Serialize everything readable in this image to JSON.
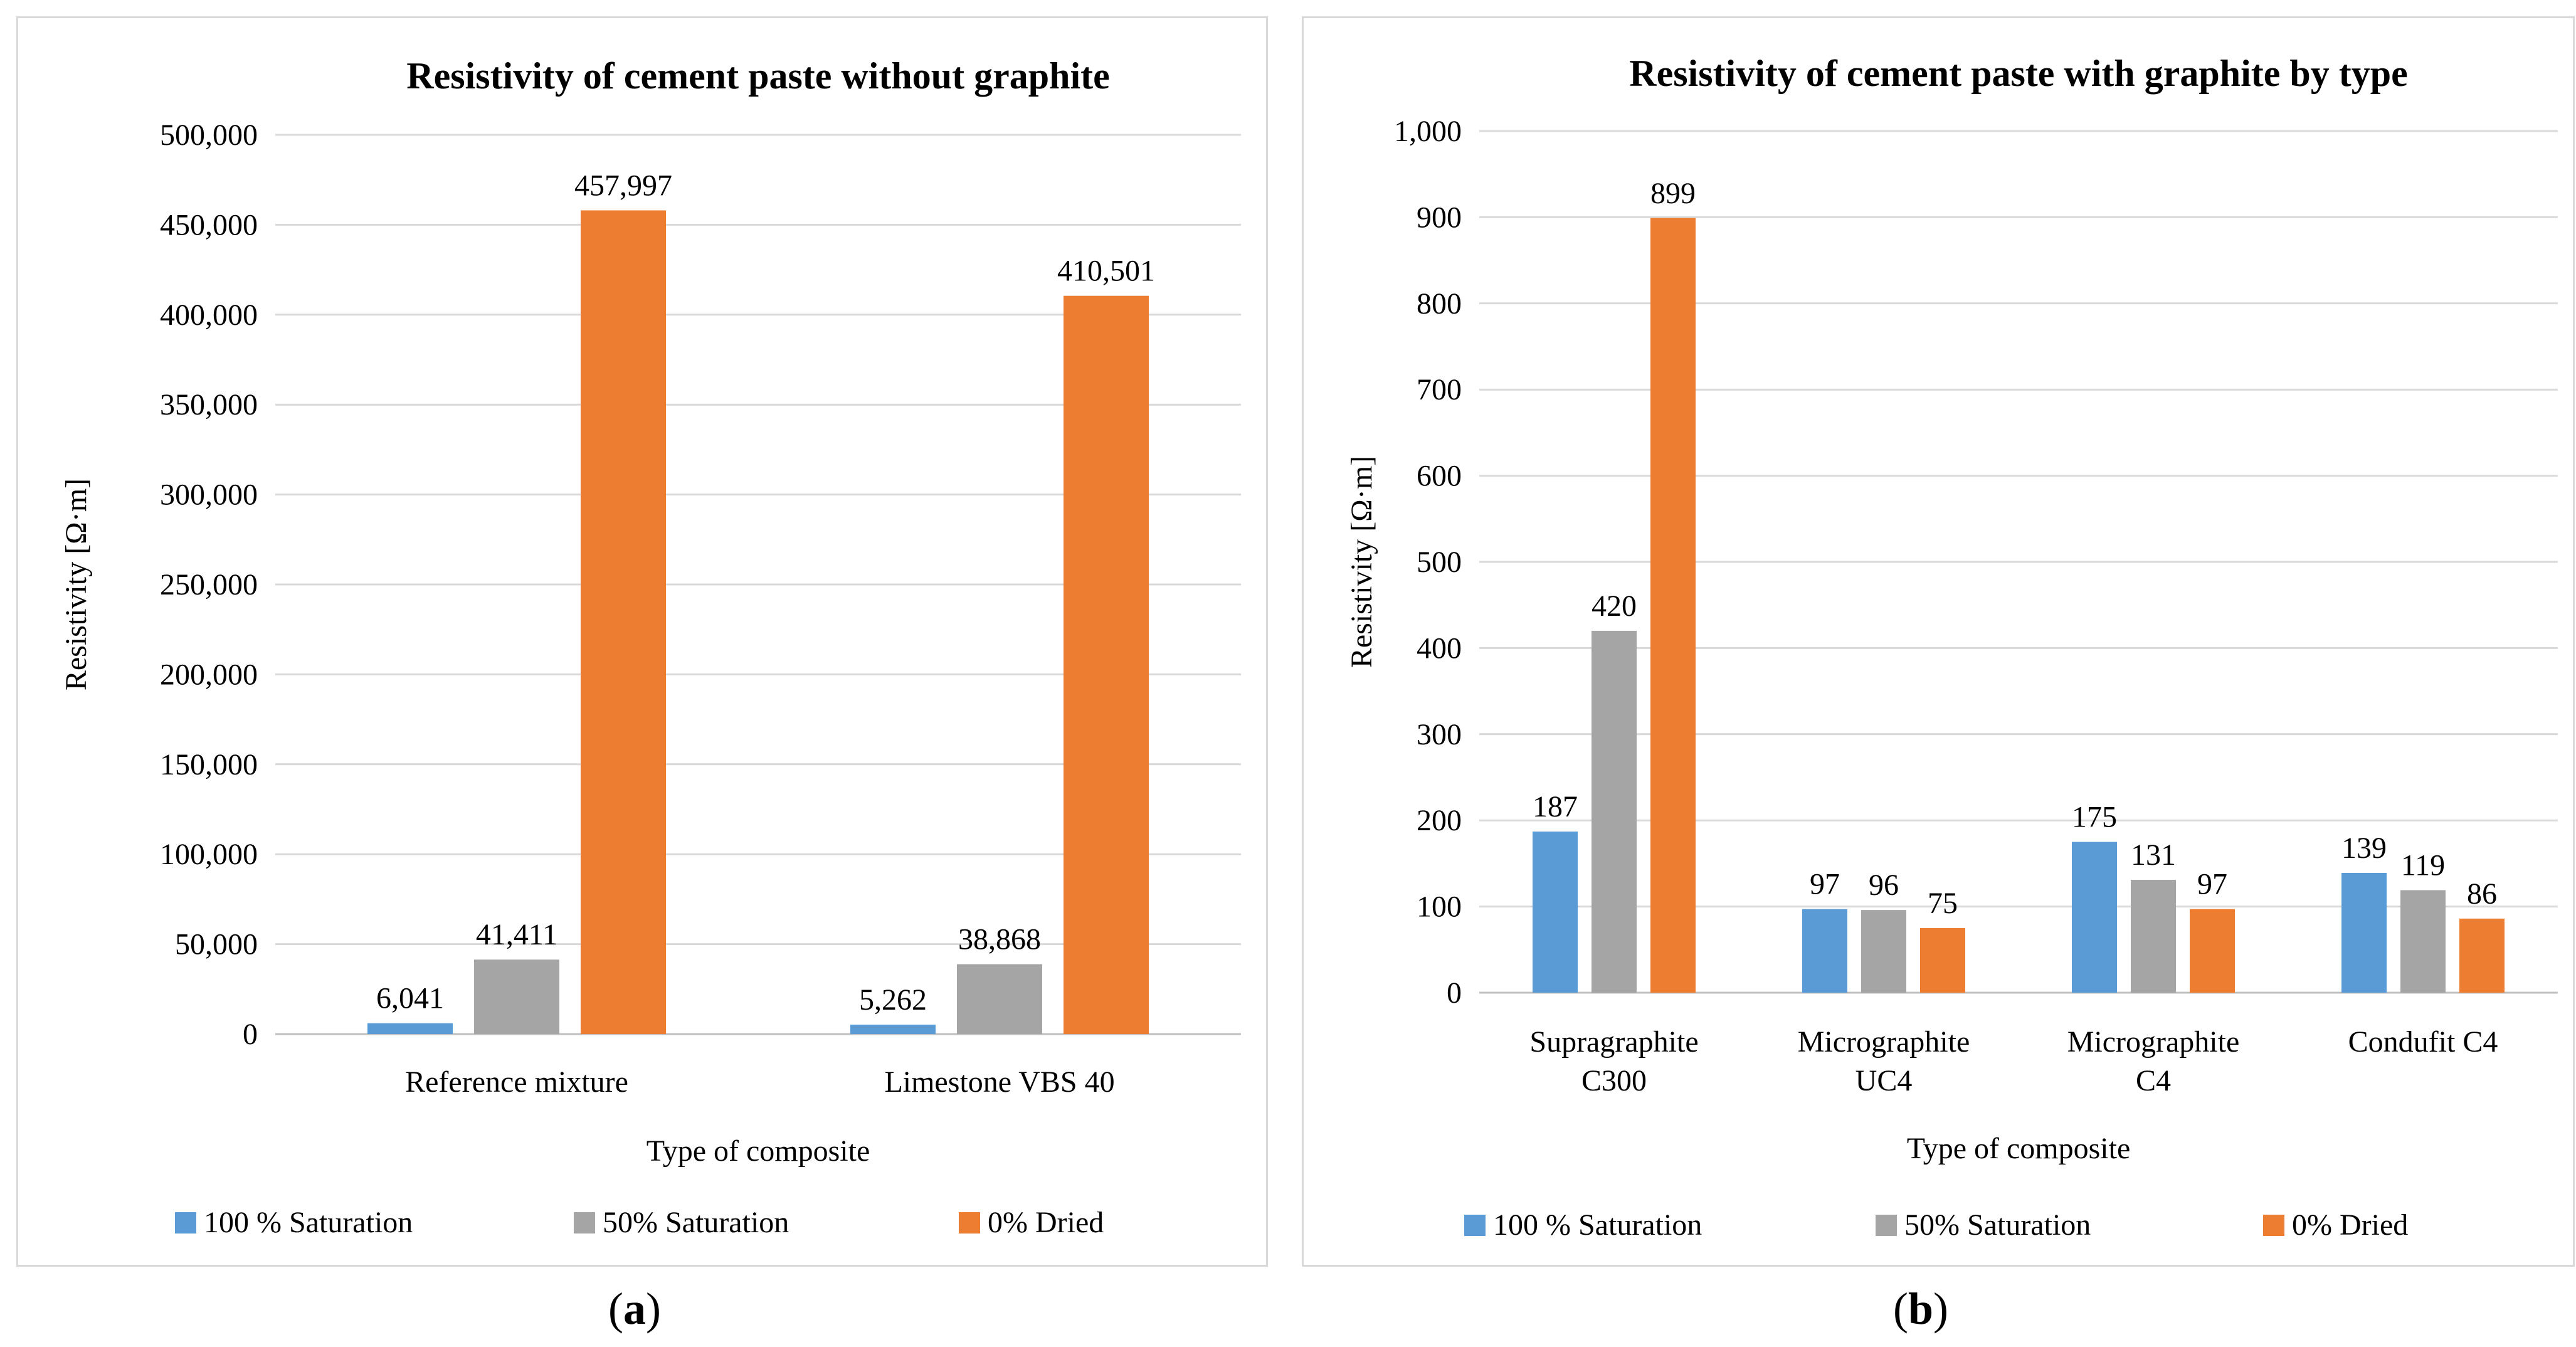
{
  "chart_data": [
    {
      "type": "bar",
      "title": "Resistivity of cement paste without graphite",
      "xlabel": "Type of composite",
      "ylabel": "Resistivity [Ω·m]",
      "ylim": [
        0,
        500000
      ],
      "yticks": [
        "0",
        "50,000",
        "100,000",
        "150,000",
        "200,000",
        "250,000",
        "300,000",
        "350,000",
        "400,000",
        "450,000",
        "500,000"
      ],
      "categories": [
        [
          "Reference mixture"
        ],
        [
          "Limestone VBS 40"
        ]
      ],
      "series": [
        {
          "name": "100 % Saturation",
          "color": "#5b9bd5",
          "values": [
            6041,
            5262
          ],
          "labels": [
            "6,041",
            "5,262"
          ]
        },
        {
          "name": "50% Saturation",
          "color": "#a5a5a5",
          "values": [
            41411,
            38868
          ],
          "labels": [
            "41,411",
            "38,868"
          ]
        },
        {
          "name": "0% Dried",
          "color": "#ed7d31",
          "values": [
            457997,
            410501
          ],
          "labels": [
            "457,997",
            "410,501"
          ]
        }
      ],
      "legend": "bottom",
      "grid": true
    },
    {
      "type": "bar",
      "title": "Resistivity of cement paste with graphite by type",
      "xlabel": "Type of composite",
      "ylabel": "Resistivity [Ω·m]",
      "ylim": [
        0,
        1000
      ],
      "yticks": [
        "0",
        "100",
        "200",
        "300",
        "400",
        "500",
        "600",
        "700",
        "800",
        "900",
        "1,000"
      ],
      "categories": [
        [
          "Supragraphite",
          "C300"
        ],
        [
          "Micrographite",
          "UC4"
        ],
        [
          "Micrographite",
          "C4"
        ],
        [
          "Condufit C4"
        ]
      ],
      "series": [
        {
          "name": "100 % Saturation",
          "color": "#5b9bd5",
          "values": [
            187,
            97,
            175,
            139
          ],
          "labels": [
            "187",
            "97",
            "175",
            "139"
          ]
        },
        {
          "name": "50% Saturation",
          "color": "#a5a5a5",
          "values": [
            420,
            96,
            131,
            119
          ],
          "labels": [
            "420",
            "96",
            "131",
            "119"
          ]
        },
        {
          "name": "0% Dried",
          "color": "#ed7d31",
          "values": [
            899,
            75,
            97,
            86
          ],
          "labels": [
            "899",
            "75",
            "97",
            "86"
          ]
        }
      ],
      "legend": "bottom",
      "grid": true
    }
  ],
  "figure_labels": [
    "a",
    "b"
  ]
}
